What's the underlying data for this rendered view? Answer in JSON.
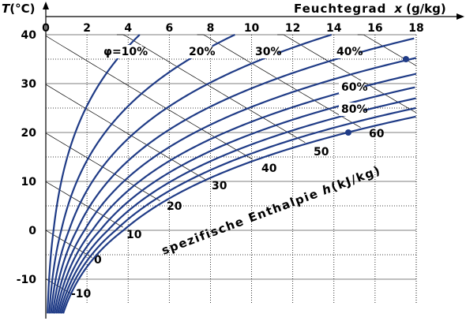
{
  "chart_data": {
    "type": "line",
    "title": "",
    "xlabel": "Feuchtegrad  x (g/kg)",
    "xlabel_parts": {
      "text": "Feuchtegrad",
      "symbol": "x",
      "unit": "(g/kg)"
    },
    "ylabel": "T(°C)",
    "ylabel_parts": {
      "symbol": "T",
      "unit": "(°C)"
    },
    "enthalpy_axis_label": "spezifische Enthalpie h(kJ/kg)",
    "enthalpy_axis_parts": {
      "text": "spezifische Enthalpie",
      "symbol": "h",
      "unit": "(kJ/kg)"
    },
    "xlim": [
      0,
      18
    ],
    "ylim": [
      -15,
      40
    ],
    "xticks": [
      0,
      2,
      4,
      6,
      8,
      10,
      12,
      14,
      16,
      18
    ],
    "yticks": [
      40,
      30,
      20,
      10,
      0,
      -10
    ],
    "x_tick_labels": [
      "0",
      "2",
      "4",
      "6",
      "8",
      "10",
      "12",
      "14",
      "16",
      "18"
    ],
    "y_tick_labels": [
      "40",
      "30",
      "20",
      "10",
      "0",
      "-10"
    ],
    "grid": true,
    "colors": {
      "curves": "#1f3b86",
      "grid": "#000000",
      "points": "#1f3b86"
    },
    "relative_humidity_curves": [
      {
        "phi": 0.1,
        "label": "φ=10%"
      },
      {
        "phi": 0.2,
        "label": "20%"
      },
      {
        "phi": 0.3,
        "label": "30%"
      },
      {
        "phi": 0.4,
        "label": "40%"
      },
      {
        "phi": 0.5,
        "label": ""
      },
      {
        "phi": 0.6,
        "label": "60%"
      },
      {
        "phi": 0.7,
        "label": ""
      },
      {
        "phi": 0.8,
        "label": "80%"
      },
      {
        "phi": 0.9,
        "label": ""
      },
      {
        "phi": 1.0,
        "label": ""
      }
    ],
    "enthalpy_lines": [
      {
        "h": -10,
        "label": "-10"
      },
      {
        "h": 0,
        "label": "0"
      },
      {
        "h": 10,
        "label": "10"
      },
      {
        "h": 20,
        "label": "20"
      },
      {
        "h": 30,
        "label": "30"
      },
      {
        "h": 40,
        "label": "40"
      },
      {
        "h": 50,
        "label": "50"
      },
      {
        "h": 60,
        "label": "60"
      },
      {
        "h": 70,
        "label": ""
      },
      {
        "h": 80,
        "label": ""
      },
      {
        "h": 90,
        "label": ""
      },
      {
        "h": 100,
        "label": ""
      },
      {
        "h": 110,
        "label": ""
      },
      {
        "h": 120,
        "label": ""
      }
    ],
    "points": [
      {
        "x": 17.5,
        "y": 35
      },
      {
        "x": 14.7,
        "y": 20
      }
    ]
  }
}
